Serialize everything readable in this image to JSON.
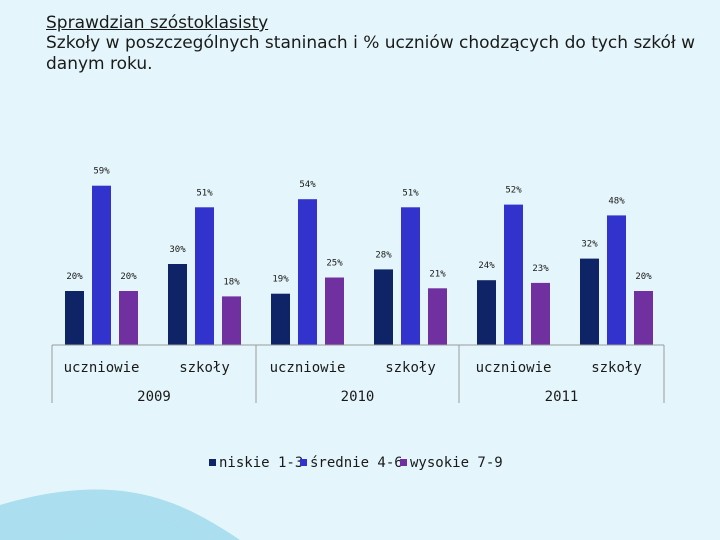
{
  "slide": {
    "title_line1": "Sprawdzian szóstoklasisty",
    "title_line2": "Szkoły w poszczególnych staninach i  % uczniów chodzących do  tych szkół w danym roku."
  },
  "colors": {
    "background": "#e4f6fb",
    "niskie": "#0e2466",
    "srednie": "#3232cc",
    "wysokie": "#7030a0",
    "swoosh": "#7ccbe6"
  },
  "chart_data": {
    "type": "bar",
    "groups": [
      {
        "year": "2009",
        "categories": [
          "uczniowie",
          "szkoły"
        ]
      },
      {
        "year": "2010",
        "categories": [
          "uczniowie",
          "szkoły"
        ]
      },
      {
        "year": "2011",
        "categories": [
          "uczniowie",
          "szkoły"
        ]
      }
    ],
    "categories": [
      "uczniowie",
      "szkoły",
      "uczniowie",
      "szkoły",
      "uczniowie",
      "szkoły"
    ],
    "series": [
      {
        "name": "niskie 1-3",
        "values": [
          20,
          30,
          19,
          28,
          24,
          32
        ],
        "labels": [
          "20%",
          "30%",
          "19%",
          "28%",
          "24%",
          "32%"
        ]
      },
      {
        "name": "średnie 4-6",
        "values": [
          59,
          51,
          54,
          51,
          52,
          48
        ],
        "labels": [
          "59%",
          "51%",
          "54%",
          "51%",
          "52%",
          "48%"
        ]
      },
      {
        "name": "wysokie 7-9",
        "values": [
          20,
          18,
          25,
          21,
          23,
          20
        ],
        "labels": [
          "20%",
          "18%",
          "25%",
          "21%",
          "23%",
          "20%"
        ]
      }
    ],
    "ylim": [
      0,
      60
    ],
    "grid": false,
    "legend_position": "bottom"
  }
}
